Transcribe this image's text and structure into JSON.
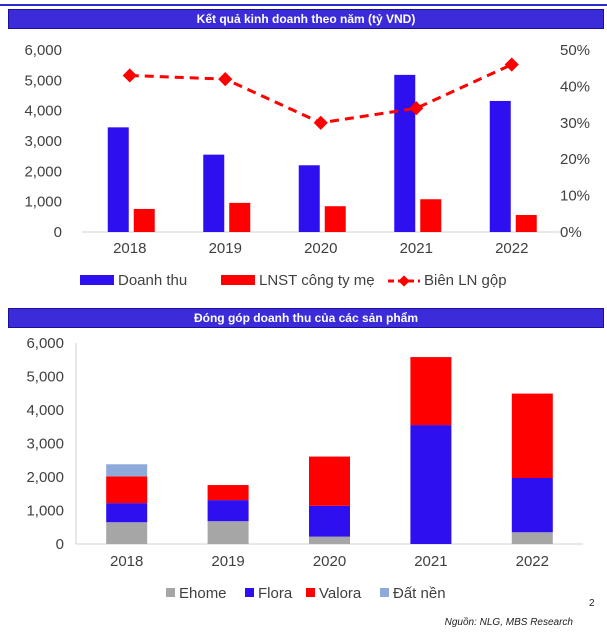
{
  "colors": {
    "doanh_thu": "#2e0ff0",
    "lnst": "#ff0000",
    "bien": "#ff0000",
    "ehome": "#a6a6a6",
    "flora": "#2e0ff0",
    "valora": "#ff0000",
    "dat_nen": "#8eaadb",
    "banner_bg": "#3b2bd9"
  },
  "footer": {
    "source": "Nguồn: NLG, MBS Research",
    "page": "2"
  },
  "chart_data": [
    {
      "type": "bar",
      "title": "Kết quả kinh doanh theo năm (tỷ VND)",
      "categories": [
        "2018",
        "2019",
        "2020",
        "2021",
        "2022"
      ],
      "series": [
        {
          "name": "Doanh thu",
          "axis": "left",
          "values": [
            3450,
            2550,
            2200,
            5180,
            4320
          ]
        },
        {
          "name": "LNST công ty mẹ",
          "axis": "left",
          "values": [
            760,
            960,
            850,
            1080,
            560
          ]
        },
        {
          "name": "Biên LN gộp",
          "type": "line",
          "axis": "right",
          "values": [
            43,
            42,
            30,
            34,
            46
          ]
        }
      ],
      "ylim": [
        0,
        6000
      ],
      "y2lim": [
        0,
        50
      ],
      "yticks": [
        "0",
        "1,000",
        "2,000",
        "3,000",
        "4,000",
        "5,000",
        "6,000"
      ],
      "y2ticks": [
        "0%",
        "10%",
        "20%",
        "30%",
        "40%",
        "50%"
      ],
      "legend_position": "bottom"
    },
    {
      "type": "bar",
      "stacked": true,
      "title": "Đóng góp doanh thu của các sản phẩm",
      "categories": [
        "2018",
        "2019",
        "2020",
        "2021",
        "2022"
      ],
      "series": [
        {
          "name": "Ehome",
          "values": [
            650,
            680,
            220,
            0,
            350
          ]
        },
        {
          "name": "Flora",
          "values": [
            570,
            630,
            920,
            3550,
            1620
          ]
        },
        {
          "name": "Valora",
          "values": [
            800,
            450,
            1470,
            2030,
            2520
          ]
        },
        {
          "name": "Đất nền",
          "values": [
            360,
            0,
            0,
            0,
            0
          ]
        }
      ],
      "ylim": [
        0,
        6000
      ],
      "yticks": [
        "0",
        "1,000",
        "2,000",
        "3,000",
        "4,000",
        "5,000",
        "6,000"
      ],
      "legend_position": "bottom"
    }
  ]
}
